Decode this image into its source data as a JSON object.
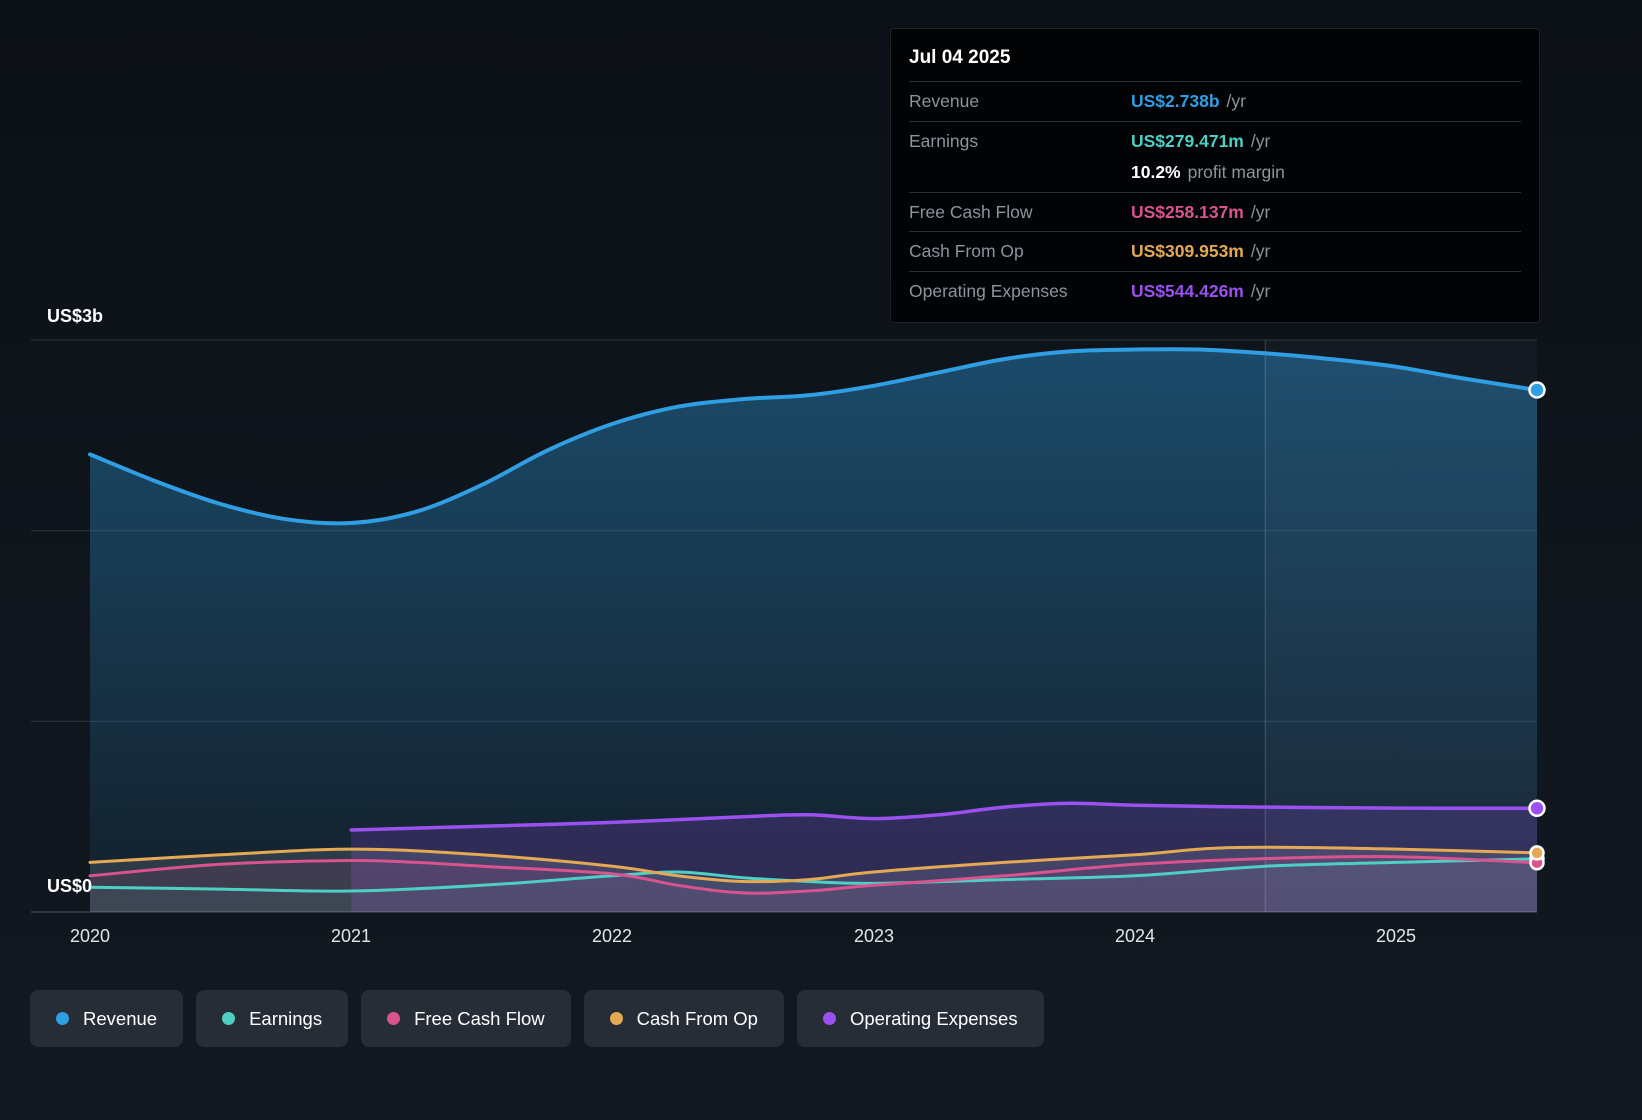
{
  "tooltip": {
    "date": "Jul 04 2025",
    "rows": [
      {
        "label": "Revenue",
        "value": "US$2.738b",
        "suffix": "/yr",
        "color": "#2f9ee3"
      },
      {
        "label": "Earnings",
        "value": "US$279.471m",
        "suffix": "/yr",
        "color": "#4ecfc4"
      },
      {
        "label": "",
        "value": "10.2%",
        "suffix": "profit margin",
        "color": "#ffffff"
      },
      {
        "label": "Free Cash Flow",
        "value": "US$258.137m",
        "suffix": "/yr",
        "color": "#d9538f"
      },
      {
        "label": "Cash From Op",
        "value": "US$309.953m",
        "suffix": "/yr",
        "color": "#e5a954"
      },
      {
        "label": "Operating Expenses",
        "value": "US$544.426m",
        "suffix": "/yr",
        "color": "#9b51f0"
      }
    ]
  },
  "axis": {
    "y_top": "US$3b",
    "y_bottom": "US$0",
    "x_ticks": [
      "2020",
      "2021",
      "2022",
      "2023",
      "2024",
      "2025"
    ]
  },
  "legend": [
    {
      "label": "Revenue",
      "color": "#2f9ee3"
    },
    {
      "label": "Earnings",
      "color": "#4ecfc4"
    },
    {
      "label": "Free Cash Flow",
      "color": "#d9538f"
    },
    {
      "label": "Cash From Op",
      "color": "#e5a954"
    },
    {
      "label": "Operating Expenses",
      "color": "#9b51f0"
    }
  ],
  "chart_data": {
    "type": "area",
    "title": "Past earnings and revenue history",
    "xlabel": "",
    "ylabel": "US$",
    "unit": "US$ billions",
    "x_tick_positions": [
      2020,
      2021,
      2022,
      2023,
      2024,
      2025
    ],
    "x_range": [
      2020,
      2025.54
    ],
    "ylim_billions": [
      0,
      3
    ],
    "y_gridlines_billions": [
      0,
      1,
      2,
      3
    ],
    "divider_x": 2024.5,
    "grid": true,
    "legend_position": "bottom",
    "series": [
      {
        "name": "Revenue",
        "color": "#2f9ee3",
        "x": [
          2020,
          2020.25,
          2020.5,
          2020.75,
          2021,
          2021.25,
          2021.5,
          2021.75,
          2022,
          2022.25,
          2022.5,
          2022.75,
          2023,
          2023.25,
          2023.5,
          2023.75,
          2024,
          2024.25,
          2024.5,
          2024.75,
          2025,
          2025.25,
          2025.54
        ],
        "values": [
          2.4,
          2.26,
          2.14,
          2.06,
          2.04,
          2.1,
          2.24,
          2.42,
          2.56,
          2.65,
          2.69,
          2.71,
          2.76,
          2.83,
          2.9,
          2.94,
          2.95,
          2.95,
          2.93,
          2.9,
          2.86,
          2.8,
          2.738
        ]
      },
      {
        "name": "Earnings",
        "color": "#4ecfc4",
        "x": [
          2020,
          2020.5,
          2021,
          2021.5,
          2022,
          2022.25,
          2022.5,
          2022.75,
          2023,
          2023.5,
          2024,
          2024.5,
          2025,
          2025.54
        ],
        "values": [
          0.13,
          0.12,
          0.11,
          0.14,
          0.19,
          0.21,
          0.18,
          0.16,
          0.15,
          0.17,
          0.19,
          0.24,
          0.26,
          0.279
        ]
      },
      {
        "name": "Free Cash Flow",
        "color": "#d9538f",
        "x": [
          2020,
          2020.5,
          2021,
          2021.25,
          2021.5,
          2022,
          2022.25,
          2022.5,
          2022.75,
          2023,
          2023.5,
          2024,
          2024.5,
          2025,
          2025.54
        ],
        "values": [
          0.19,
          0.25,
          0.27,
          0.26,
          0.24,
          0.2,
          0.14,
          0.1,
          0.11,
          0.14,
          0.19,
          0.25,
          0.28,
          0.29,
          0.258
        ]
      },
      {
        "name": "Cash From Op",
        "color": "#e5a954",
        "x": [
          2020,
          2020.5,
          2021,
          2021.5,
          2022,
          2022.25,
          2022.5,
          2022.75,
          2023,
          2023.5,
          2024,
          2024.25,
          2024.5,
          2025,
          2025.54
        ],
        "values": [
          0.26,
          0.3,
          0.33,
          0.3,
          0.24,
          0.19,
          0.16,
          0.17,
          0.21,
          0.26,
          0.3,
          0.33,
          0.34,
          0.33,
          0.31
        ]
      },
      {
        "name": "Operating Expenses",
        "color": "#9b51f0",
        "x": [
          2021,
          2021.5,
          2022,
          2022.5,
          2022.75,
          2023,
          2023.25,
          2023.5,
          2023.75,
          2024,
          2024.5,
          2025,
          2025.54
        ],
        "values": [
          0.43,
          0.45,
          0.47,
          0.5,
          0.51,
          0.49,
          0.51,
          0.55,
          0.57,
          0.56,
          0.55,
          0.545,
          0.544
        ]
      }
    ]
  }
}
